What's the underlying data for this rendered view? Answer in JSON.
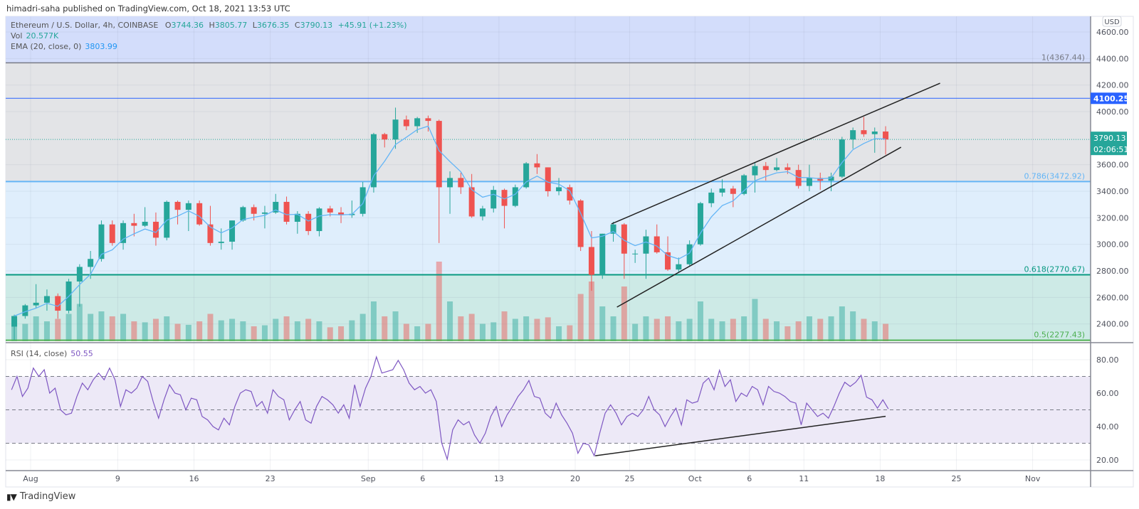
{
  "header": {
    "published": "himadri-saha published on TradingView.com, Oct 18, 2021 13:53 UTC"
  },
  "legend": {
    "symbol": "Ethereum / U.S. Dollar, 4h, COINBASE",
    "open_label": "O",
    "open": "3744.36",
    "high_label": "H",
    "high": "3805.77",
    "low_label": "L",
    "low": "3676.35",
    "close_label": "C",
    "close": "3790.13",
    "change": "+45.91 (+1.23%)",
    "vol_label": "Vol",
    "vol": "20.577K",
    "ema_label": "EMA (20, close, 0)",
    "ema": "3803.99",
    "rsi_label": "RSI (14, close)",
    "rsi": "50.55"
  },
  "price_axis": {
    "currency": "USD",
    "ticks": [
      "4600.00",
      "4400.00",
      "4200.00",
      "4000.00",
      "3600.00",
      "3400.00",
      "3200.00",
      "3000.00",
      "2800.00",
      "2600.00",
      "2400.00"
    ],
    "resistance_tag": "4100.25",
    "last_price_tag": "3790.13",
    "countdown": "02:06:51"
  },
  "rsi_axis": {
    "ticks": [
      "80.00",
      "60.00",
      "40.00",
      "20.00"
    ]
  },
  "time_axis": [
    {
      "label": "Aug",
      "date": "2021-08-01"
    },
    {
      "label": "9",
      "date": "2021-08-09"
    },
    {
      "label": "16",
      "date": "2021-08-16"
    },
    {
      "label": "23",
      "date": "2021-08-23"
    },
    {
      "label": "Sep",
      "date": "2021-09-01"
    },
    {
      "label": "6",
      "date": "2021-09-06"
    },
    {
      "label": "13",
      "date": "2021-09-13"
    },
    {
      "label": "20",
      "date": "2021-09-20"
    },
    {
      "label": "25",
      "date": "2021-09-25"
    },
    {
      "label": "Oct",
      "date": "2021-10-01"
    },
    {
      "label": "6",
      "date": "2021-10-06"
    },
    {
      "label": "11",
      "date": "2021-10-11"
    },
    {
      "label": "18",
      "date": "2021-10-18"
    },
    {
      "label": "25",
      "date": "2021-10-25"
    },
    {
      "label": "Nov",
      "date": "2021-11-01"
    }
  ],
  "fib_levels": [
    {
      "label": "1(4367.44)",
      "level": 1,
      "price": 4367.44,
      "color": "#787b86"
    },
    {
      "label": "0.786(3472.92)",
      "level": 0.786,
      "price": 3472.92,
      "color": "#64b5f6"
    },
    {
      "label": "0.618(2770.67)",
      "level": 0.618,
      "price": 2770.67,
      "color": "#089981"
    },
    {
      "label": "0.5(2277.43)",
      "level": 0.5,
      "price": 2277.43,
      "color": "#4caf50"
    }
  ],
  "colors": {
    "up": "#26a69a",
    "down": "#ef5350",
    "ema": "#64b5f6",
    "rsi": "#7e57c2",
    "resistance": "#2962ff",
    "trendline": "#222222"
  },
  "brand": {
    "name": "TradingView",
    "logo_text": "TV"
  },
  "chart_data": [
    {
      "type": "candlestick",
      "title": "Ethereum / U.S. Dollar, 4h, COINBASE",
      "ylim": [
        2277,
        4700
      ],
      "grid": true,
      "columns": [
        "date",
        "open",
        "high",
        "low",
        "close",
        "volume_k"
      ],
      "ohlcv": [
        [
          "2021-07-30",
          2380,
          2470,
          2280,
          2460,
          45
        ],
        [
          "2021-07-31",
          2460,
          2550,
          2440,
          2540,
          35
        ],
        [
          "2021-08-01",
          2540,
          2700,
          2520,
          2560,
          50
        ],
        [
          "2021-08-02",
          2560,
          2660,
          2500,
          2610,
          40
        ],
        [
          "2021-08-03",
          2610,
          2630,
          2440,
          2500,
          45
        ],
        [
          "2021-08-04",
          2500,
          2740,
          2480,
          2720,
          55
        ],
        [
          "2021-08-05",
          2720,
          2850,
          2530,
          2830,
          75
        ],
        [
          "2021-08-06",
          2830,
          2950,
          2740,
          2890,
          55
        ],
        [
          "2021-08-07",
          2890,
          3180,
          2870,
          3150,
          60
        ],
        [
          "2021-08-08",
          3150,
          3180,
          2990,
          3010,
          50
        ],
        [
          "2021-08-09",
          3010,
          3180,
          2960,
          3160,
          55
        ],
        [
          "2021-08-10",
          3160,
          3230,
          3060,
          3140,
          40
        ],
        [
          "2021-08-11",
          3140,
          3280,
          3130,
          3170,
          38
        ],
        [
          "2021-08-12",
          3170,
          3240,
          2990,
          3050,
          45
        ],
        [
          "2021-08-13",
          3050,
          3330,
          3030,
          3320,
          50
        ],
        [
          "2021-08-14",
          3320,
          3330,
          3150,
          3260,
          35
        ],
        [
          "2021-08-15",
          3260,
          3330,
          3100,
          3310,
          33
        ],
        [
          "2021-08-16",
          3310,
          3330,
          3140,
          3150,
          40
        ],
        [
          "2021-08-17",
          3150,
          3290,
          2990,
          3010,
          55
        ],
        [
          "2021-08-18",
          3010,
          3120,
          2960,
          3020,
          42
        ],
        [
          "2021-08-19",
          3020,
          3180,
          2960,
          3180,
          45
        ],
        [
          "2021-08-20",
          3180,
          3290,
          3170,
          3280,
          40
        ],
        [
          "2021-08-21",
          3280,
          3300,
          3180,
          3230,
          30
        ],
        [
          "2021-08-22",
          3230,
          3290,
          3120,
          3240,
          32
        ],
        [
          "2021-08-23",
          3240,
          3380,
          3230,
          3320,
          45
        ],
        [
          "2021-08-24",
          3320,
          3360,
          3150,
          3170,
          50
        ],
        [
          "2021-08-25",
          3170,
          3250,
          3080,
          3230,
          40
        ],
        [
          "2021-08-26",
          3230,
          3250,
          3070,
          3100,
          45
        ],
        [
          "2021-08-27",
          3100,
          3280,
          3060,
          3270,
          40
        ],
        [
          "2021-08-28",
          3270,
          3290,
          3210,
          3240,
          28
        ],
        [
          "2021-08-29",
          3240,
          3280,
          3160,
          3220,
          30
        ],
        [
          "2021-08-30",
          3220,
          3330,
          3200,
          3230,
          42
        ],
        [
          "2021-08-31",
          3230,
          3470,
          3210,
          3430,
          55
        ],
        [
          "2021-09-01",
          3430,
          3840,
          3390,
          3830,
          80
        ],
        [
          "2021-09-02",
          3830,
          3840,
          3730,
          3790,
          50
        ],
        [
          "2021-09-03",
          3790,
          4030,
          3720,
          3940,
          60
        ],
        [
          "2021-09-04",
          3940,
          3970,
          3860,
          3890,
          35
        ],
        [
          "2021-09-05",
          3890,
          3960,
          3840,
          3950,
          30
        ],
        [
          "2021-09-06",
          3950,
          3970,
          3850,
          3930,
          35
        ],
        [
          "2021-09-07",
          3930,
          3940,
          3010,
          3430,
          160
        ],
        [
          "2021-09-08",
          3430,
          3550,
          3230,
          3500,
          80
        ],
        [
          "2021-09-09",
          3500,
          3540,
          3380,
          3430,
          50
        ],
        [
          "2021-09-10",
          3430,
          3530,
          3200,
          3210,
          55
        ],
        [
          "2021-09-11",
          3210,
          3290,
          3180,
          3270,
          35
        ],
        [
          "2021-09-12",
          3270,
          3440,
          3240,
          3410,
          38
        ],
        [
          "2021-09-13",
          3410,
          3420,
          3120,
          3290,
          60
        ],
        [
          "2021-09-14",
          3290,
          3450,
          3280,
          3430,
          45
        ],
        [
          "2021-09-15",
          3430,
          3620,
          3420,
          3610,
          50
        ],
        [
          "2021-09-16",
          3610,
          3680,
          3530,
          3580,
          45
        ],
        [
          "2021-09-17",
          3580,
          3580,
          3360,
          3400,
          48
        ],
        [
          "2021-09-18",
          3400,
          3500,
          3370,
          3430,
          30
        ],
        [
          "2021-09-19",
          3430,
          3450,
          3300,
          3330,
          32
        ],
        [
          "2021-09-20",
          3330,
          3340,
          2950,
          2980,
          95
        ],
        [
          "2021-09-21",
          2980,
          3100,
          2650,
          2770,
          120
        ],
        [
          "2021-09-22",
          2770,
          3080,
          2740,
          3080,
          70
        ],
        [
          "2021-09-23",
          3080,
          3170,
          3020,
          3150,
          50
        ],
        [
          "2021-09-24",
          3150,
          3160,
          2740,
          2930,
          110
        ],
        [
          "2021-09-25",
          2930,
          2960,
          2860,
          2930,
          35
        ],
        [
          "2021-09-26",
          2930,
          3110,
          2740,
          3060,
          50
        ],
        [
          "2021-09-27",
          3060,
          3150,
          2930,
          2940,
          45
        ],
        [
          "2021-09-28",
          2940,
          3060,
          2800,
          2810,
          50
        ],
        [
          "2021-09-29",
          2810,
          2900,
          2790,
          2850,
          40
        ],
        [
          "2021-09-30",
          2850,
          3030,
          2840,
          3000,
          45
        ],
        [
          "2021-10-01",
          3000,
          3320,
          2990,
          3310,
          80
        ],
        [
          "2021-10-02",
          3310,
          3420,
          3280,
          3390,
          45
        ],
        [
          "2021-10-03",
          3390,
          3490,
          3360,
          3420,
          40
        ],
        [
          "2021-10-04",
          3420,
          3440,
          3280,
          3380,
          45
        ],
        [
          "2021-10-05",
          3380,
          3530,
          3370,
          3520,
          50
        ],
        [
          "2021-10-06",
          3520,
          3620,
          3390,
          3590,
          85
        ],
        [
          "2021-10-07",
          3590,
          3620,
          3480,
          3560,
          45
        ],
        [
          "2021-10-08",
          3560,
          3650,
          3550,
          3580,
          40
        ],
        [
          "2021-10-09",
          3580,
          3610,
          3530,
          3560,
          30
        ],
        [
          "2021-10-10",
          3560,
          3600,
          3420,
          3440,
          40
        ],
        [
          "2021-10-11",
          3440,
          3600,
          3400,
          3500,
          50
        ],
        [
          "2021-10-12",
          3500,
          3540,
          3410,
          3480,
          45
        ],
        [
          "2021-10-13",
          3480,
          3540,
          3400,
          3510,
          50
        ],
        [
          "2021-10-14",
          3510,
          3810,
          3500,
          3790,
          70
        ],
        [
          "2021-10-15",
          3790,
          3880,
          3720,
          3860,
          60
        ],
        [
          "2021-10-16",
          3860,
          3960,
          3810,
          3830,
          45
        ],
        [
          "2021-10-17",
          3830,
          3880,
          3690,
          3850,
          40
        ],
        [
          "2021-10-18",
          3850,
          3890,
          3676,
          3790,
          35
        ]
      ],
      "horizontal_lines": [
        {
          "price": 4100.25,
          "color": "#2962ff"
        },
        {
          "price": 3790.13,
          "style": "dotted",
          "color": "#26a69a"
        }
      ],
      "trendlines": [
        {
          "from": [
            "2021-09-23 08:00",
            3154
          ],
          "to": [
            "2021-10-23 12:00",
            4214
          ]
        },
        {
          "from": [
            "2021-09-23 20:00",
            2527
          ],
          "to": [
            "2021-10-19 22:00",
            3732
          ]
        }
      ]
    },
    {
      "type": "line",
      "title": "RSI (14, close)",
      "ylim": [
        15,
        90
      ],
      "bands": {
        "upper": 70,
        "middle": 50,
        "lower": 30
      },
      "x_start": "2021-07-30 00:00",
      "x_step_hours": 12,
      "values": [
        62,
        70,
        58,
        63,
        75,
        70,
        74,
        60,
        63,
        50,
        47,
        48,
        58,
        66,
        62,
        68,
        72,
        68,
        75,
        68,
        52,
        62,
        60,
        63,
        70,
        67,
        55,
        45,
        56,
        65,
        60,
        59,
        50,
        57,
        56,
        46,
        44,
        40,
        38,
        45,
        41,
        52,
        60,
        62,
        61,
        52,
        55,
        48,
        62,
        58,
        56,
        44,
        50,
        55,
        44,
        42,
        52,
        58,
        56,
        53,
        48,
        53,
        45,
        65,
        52,
        63,
        70,
        81.7,
        72,
        73,
        74,
        79.6,
        74,
        66,
        62,
        64,
        60,
        62,
        55,
        30,
        20.4,
        38,
        44,
        41,
        43,
        35,
        30,
        36,
        46,
        52,
        40,
        47,
        52,
        58,
        62,
        67.6,
        58,
        57,
        48,
        45,
        54,
        47,
        42,
        36,
        24,
        30,
        29,
        22.5,
        36,
        48,
        53,
        48,
        41,
        46,
        48,
        46,
        50,
        58,
        50,
        47,
        40,
        46,
        51,
        41,
        56,
        54,
        55,
        66,
        69,
        62,
        73.7,
        64,
        68,
        55,
        60,
        58,
        64,
        62,
        53,
        64,
        61,
        60,
        58,
        55,
        54,
        41,
        54,
        50,
        46,
        48,
        45,
        52,
        60,
        66.5,
        64,
        66.5,
        70.7,
        57.6,
        56,
        51,
        56,
        50.55
      ],
      "trendlines": [
        {
          "from": [
            "2021-09-21 20:00",
            22.5
          ],
          "to": [
            "2021-10-18 12:00",
            46.1
          ]
        }
      ]
    }
  ]
}
